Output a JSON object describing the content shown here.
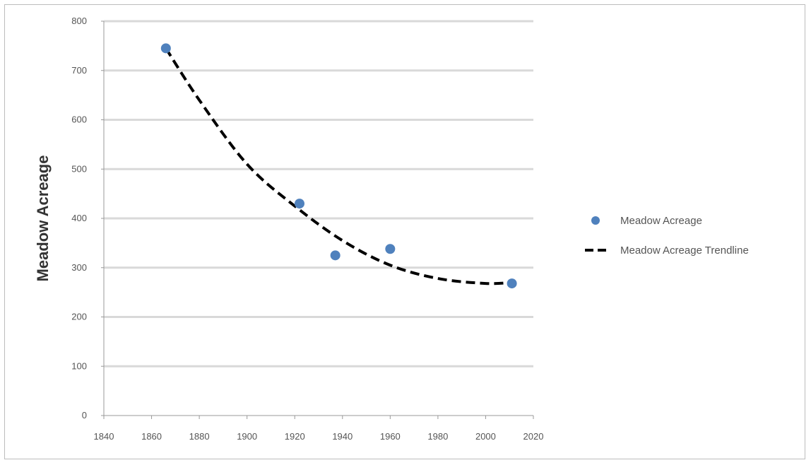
{
  "chart_data": {
    "type": "scatter",
    "ylabel": "Meadow Acreage",
    "xlabel": "",
    "xlim": [
      1840,
      2020
    ],
    "ylim": [
      0,
      800
    ],
    "xticks": [
      "1840",
      "1860",
      "1880",
      "1900",
      "1920",
      "1940",
      "1960",
      "1980",
      "2000",
      "2020"
    ],
    "yticks": [
      "0",
      "100",
      "200",
      "300",
      "400",
      "500",
      "600",
      "700",
      "800"
    ],
    "grid": "horizontal",
    "legend_position": "right",
    "series": [
      {
        "name": "Meadow Acreage",
        "kind": "points",
        "color": "#4f81bd",
        "x": [
          1866,
          1922,
          1937,
          1960,
          2011
        ],
        "y": [
          745,
          430,
          325,
          338,
          268
        ]
      },
      {
        "name": "Meadow Acreage Trendline",
        "kind": "trendline",
        "style": "dashed",
        "color": "#000000",
        "x": [
          1866,
          1880,
          1900,
          1920,
          1940,
          1960,
          1980,
          2000,
          2011
        ],
        "y": [
          745,
          640,
          510,
          425,
          355,
          305,
          278,
          268,
          270
        ]
      }
    ]
  }
}
